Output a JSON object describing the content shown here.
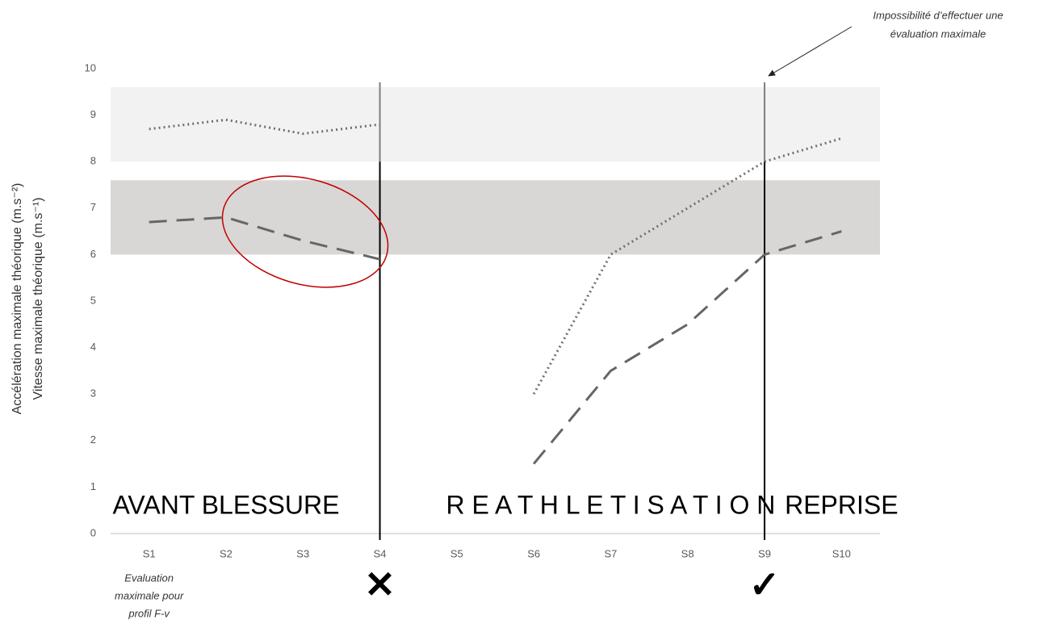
{
  "chart_data": {
    "type": "line",
    "y_axis_labels": [
      "Accélération maximale théorique (m.s⁻²)",
      "Vitesse maximale théorique (m.s⁻¹)"
    ],
    "categories": [
      "S1",
      "S2",
      "S3",
      "S4",
      "S5",
      "S6",
      "S7",
      "S8",
      "S9",
      "S10"
    ],
    "series": [
      {
        "style": "dotted",
        "color": "#6f6f6f",
        "values": [
          8.7,
          8.9,
          8.6,
          8.8,
          null,
          3.0,
          6.0,
          7.0,
          8.0,
          8.5
        ]
      },
      {
        "style": "dashed",
        "color": "#666666",
        "values": [
          6.7,
          6.8,
          6.3,
          5.9,
          null,
          1.5,
          3.5,
          4.5,
          6.0,
          6.5
        ]
      }
    ],
    "bands": [
      {
        "from": 8,
        "to": 9.6,
        "color": "#f2f2f2"
      },
      {
        "from": 6,
        "to": 7.6,
        "color": "#d9d6d6"
      }
    ],
    "ylim": [
      0,
      10
    ],
    "yticks": [
      0,
      1,
      2,
      3,
      4,
      5,
      6,
      7,
      8,
      9,
      10
    ],
    "dividers": [
      "S4",
      "S9"
    ],
    "phases": [
      {
        "label": "AVANT BLESSURE",
        "at": "S2"
      },
      {
        "label": "R E A T H L E T I S A T I O N",
        "at": "S7"
      },
      {
        "label": "REPRISE",
        "at": "S10"
      }
    ],
    "symbols": [
      {
        "at": "S4",
        "symbol": "✕"
      },
      {
        "at": "S9",
        "symbol": "✓"
      }
    ],
    "note_lines": [
      "Evaluation",
      "maximale pour",
      "profil F-v"
    ],
    "annotation_lines": [
      "Impossibilité d’effectuer une",
      "évaluation maximale"
    ]
  }
}
